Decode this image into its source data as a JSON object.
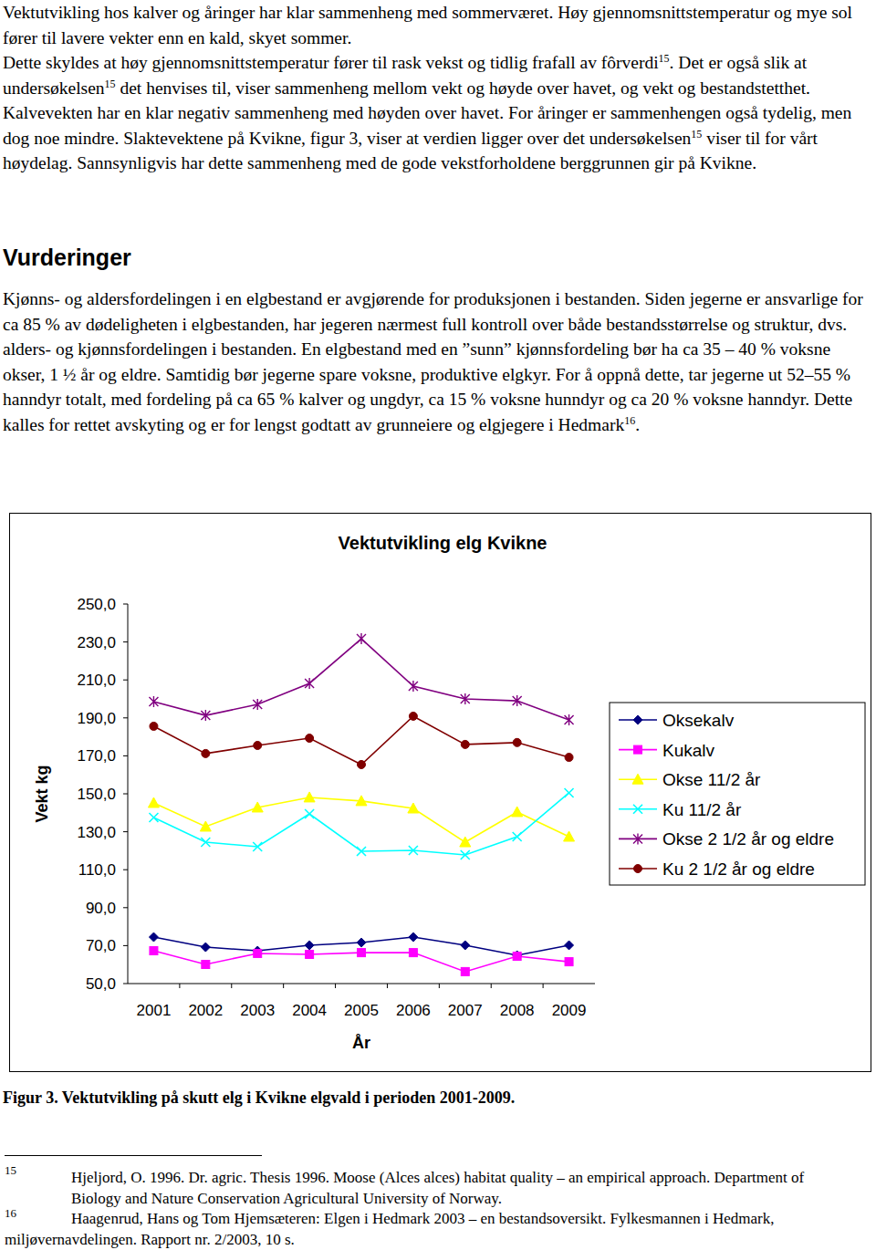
{
  "paragraphs": [
    [
      {
        "text": "Vektutvikling hos kalver og åringer har klar sammenheng med sommerværet. Høy gjennomsnittstemperatur og mye sol fører til lavere vekter enn en kald, skyet sommer."
      }
    ],
    [
      {
        "text": "Dette skyldes at høy gjennomsnittstemperatur fører til rask vekst og tidlig frafall av fôrverdi"
      },
      {
        "sup": "15"
      },
      {
        "text": ". Det er også slik at undersøkelsen"
      },
      {
        "sup": "15"
      },
      {
        "text": " det henvises til, viser sammenheng mellom vekt og høyde over havet, og vekt og bestandstetthet. Kalvevekten har en klar negativ sammenheng med høyden over havet. For åringer er sammenhengen også tydelig, men dog noe mindre. Slaktevektene på Kvikne, figur 3, viser at verdien ligger over det undersøkelsen"
      },
      {
        "sup": "15"
      },
      {
        "text": " viser til for vårt høydelag. Sannsynligvis har dette sammenheng med de gode vekstforholdene berggrunnen gir på Kvikne."
      }
    ],
    [
      {
        "text": "Kjønns- og aldersfordelingen i en elgbestand er avgjørende for produksjonen i bestanden. Siden jegerne er ansvarlige for ca 85 % av dødeligheten i elgbestanden, har jegeren nærmest full kontroll over både bestandsstørrelse og struktur, dvs. alders- og kjønnsfordelingen i bestanden. En elgbestand med en ”sunn” kjønnsfordeling bør ha ca 35 – 40 % voksne okser, 1 ½ år og eldre. Samtidig bør jegerne spare voksne, produktive elgkyr. For å oppnå dette, tar jegerne ut 52–55 % hanndyr totalt, med fordeling på ca 65 % kalver og ungdyr, ca 15 % voksne hunndyr og ca 20 % voksne hanndyr. Dette kalles for rettet avskyting og er for lengst godtatt av grunneiere og elgjegere i Hedmark"
      },
      {
        "sup": "16"
      },
      {
        "text": "."
      }
    ]
  ],
  "heading": "Vurderinger",
  "chart_data": {
    "type": "line",
    "title": "Vektutvikling elg Kvikne",
    "x_label": "År",
    "y_label": "Vekt kg",
    "categories": [
      "2001",
      "2002",
      "2003",
      "2004",
      "2005",
      "2006",
      "2007",
      "2008",
      "2009"
    ],
    "ylim": [
      50,
      250
    ],
    "yticks": [
      {
        "value": 50,
        "label": "50,0"
      },
      {
        "value": 70,
        "label": "70,0"
      },
      {
        "value": 90,
        "label": "90,0"
      },
      {
        "value": 110,
        "label": "110,0"
      },
      {
        "value": 130,
        "label": "130,0"
      },
      {
        "value": 150,
        "label": "150,0"
      },
      {
        "value": 170,
        "label": "170,0"
      },
      {
        "value": 190,
        "label": "190,0"
      },
      {
        "value": 210,
        "label": "210,0"
      },
      {
        "value": 230,
        "label": "230,0"
      },
      {
        "value": 250,
        "label": "250,0"
      }
    ],
    "grid": false,
    "legend": "right",
    "series": [
      {
        "name": "Oksekalv",
        "color": "#000080",
        "marker": "diamond",
        "values": [
          74.5,
          69.2,
          67.3,
          70.2,
          71.6,
          74.5,
          70.2,
          64.9,
          70.2
        ]
      },
      {
        "name": "Kukalv",
        "color": "#ff00ff",
        "marker": "square",
        "values": [
          67.3,
          60.1,
          65.9,
          65.4,
          66.3,
          66.3,
          56.3,
          64.4,
          61.5
        ]
      },
      {
        "name": "Okse 11/2 år",
        "color": "#ffff00",
        "marker": "triangle",
        "values": [
          145.2,
          132.7,
          142.8,
          148.1,
          146.2,
          142.3,
          124.5,
          140.4,
          127.4
        ]
      },
      {
        "name": "Ku 11/2 år",
        "color": "#00ffff",
        "marker": "x",
        "values": [
          137.5,
          124.5,
          122.1,
          139.4,
          119.7,
          120.2,
          117.8,
          127.4,
          150.5
        ]
      },
      {
        "name": "Okse 2 1/2 år og eldre",
        "color": "#800080",
        "marker": "star",
        "values": [
          198.6,
          191.3,
          197.1,
          208.2,
          231.7,
          206.7,
          200.0,
          199.0,
          188.9
        ]
      },
      {
        "name": "Ku 2 1/2 år og eldre",
        "color": "#800000",
        "marker": "circle",
        "values": [
          185.6,
          171.2,
          175.5,
          179.3,
          165.4,
          190.9,
          176.0,
          177.0,
          169.2
        ]
      }
    ]
  },
  "caption": "Figur 3. Vektutvikling på skutt elg i Kvikne elgvald i perioden 2001-2009.",
  "footnotes": [
    {
      "number": "15",
      "text": "Hjeljord, O. 1996. Dr. agric. Thesis 1996. Moose (Alces alces) habitat quality – an empirical approach. Department of Biology and Nature Conservation Agricultural University of Norway."
    },
    {
      "number": "16",
      "text": "Haagenrud, Hans og Tom Hjemsæteren: Elgen i Hedmark 2003 – en bestandsoversikt. Fylkesmannen i Hedmark, miljøvernavdelingen. Rapport nr. 2/2003, 10 s."
    }
  ]
}
